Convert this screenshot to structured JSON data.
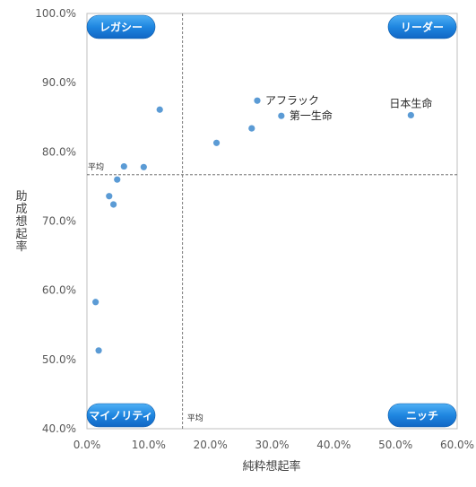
{
  "chart_data": {
    "type": "scatter",
    "xlabel": "純粋想起率",
    "ylabel": "助成想起率",
    "xlim": [
      0,
      60
    ],
    "ylim": [
      40,
      100
    ],
    "x_ticks": [
      "0.0%",
      "10.0%",
      "20.0%",
      "30.0%",
      "40.0%",
      "50.0%",
      "60.0%"
    ],
    "y_ticks": [
      "40.0%",
      "50.0%",
      "60.0%",
      "70.0%",
      "80.0%",
      "90.0%",
      "100.0%"
    ],
    "average_x": 15.5,
    "average_y": 76.7,
    "average_label": "平均",
    "grid": false,
    "point_color": "#5b9bd5",
    "points": [
      {
        "x": 1.4,
        "y": 58.3
      },
      {
        "x": 1.9,
        "y": 51.3
      },
      {
        "x": 3.6,
        "y": 73.6
      },
      {
        "x": 4.3,
        "y": 72.4
      },
      {
        "x": 4.9,
        "y": 76.0
      },
      {
        "x": 6.0,
        "y": 77.9
      },
      {
        "x": 9.2,
        "y": 77.8
      },
      {
        "x": 11.8,
        "y": 86.1
      },
      {
        "x": 21.0,
        "y": 81.3
      },
      {
        "x": 26.7,
        "y": 83.4
      },
      {
        "x": 27.6,
        "y": 87.4,
        "label": "アフラック"
      },
      {
        "x": 31.5,
        "y": 85.2,
        "label": "第一生命"
      },
      {
        "x": 52.5,
        "y": 85.3,
        "label": "日本生命"
      }
    ],
    "quadrants": {
      "top_left": "レガシー",
      "top_right": "リーダー",
      "bottom_left": "マイノリティ",
      "bottom_right": "ニッチ"
    },
    "badge_color": "#1f86e0"
  }
}
